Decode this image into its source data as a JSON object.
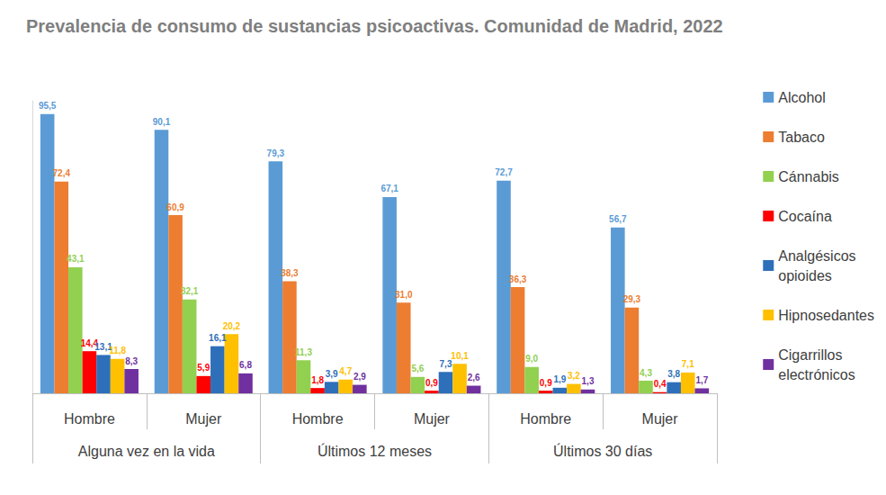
{
  "chart_data": {
    "type": "bar",
    "title": "Prevalencia de consumo de sustancias psicoactivas. Comunidad de Madrid, 2022",
    "categories": [
      "Hombre",
      "Mujer",
      "Hombre",
      "Mujer",
      "Hombre",
      "Mujer"
    ],
    "groups": [
      "Alguna vez en la vida",
      "Últimos 12 meses",
      "Últimos 30 días"
    ],
    "series": [
      {
        "name": "Alcohol",
        "color": "#5B9BD5",
        "values": [
          95.5,
          90.1,
          79.3,
          67.1,
          72.7,
          56.7
        ],
        "value_labels": [
          "95,5",
          "90,1",
          "79,3",
          "67,1",
          "72,7",
          "56,7"
        ]
      },
      {
        "name": "Tabaco",
        "color": "#ED7D31",
        "values": [
          72.4,
          60.9,
          38.3,
          31.0,
          36.3,
          29.3
        ],
        "value_labels": [
          "72,4",
          "60,9",
          "38,3",
          "31,0",
          "36,3",
          "29,3"
        ]
      },
      {
        "name": "Cánnabis",
        "color": "#92D050",
        "values": [
          43.1,
          32.1,
          11.3,
          5.6,
          9.0,
          4.3
        ],
        "value_labels": [
          "43,1",
          "32,1",
          "11,3",
          "5,6",
          "9,0",
          "4,3"
        ]
      },
      {
        "name": "Cocaína",
        "color": "#FF0000",
        "values": [
          14.4,
          5.9,
          1.8,
          0.9,
          0.9,
          0.4
        ],
        "value_labels": [
          "14,4",
          "5,9",
          "1,8",
          "0,9",
          "0,9",
          "0,4"
        ]
      },
      {
        "name": "Analgésicos opioides",
        "color": "#2E6FBA",
        "values": [
          13.1,
          16.1,
          3.9,
          7.3,
          1.9,
          3.8
        ],
        "value_labels": [
          "13,1",
          "16,1",
          "3,9",
          "7,3",
          "1,9",
          "3,8"
        ]
      },
      {
        "name": "Hipnosedantes",
        "color": "#FFC000",
        "values": [
          11.8,
          20.2,
          4.7,
          10.1,
          3.2,
          7.1
        ],
        "value_labels": [
          "11,8",
          "20,2",
          "4,7",
          "10,1",
          "3,2",
          "7,1"
        ]
      },
      {
        "name": "Cigarrillos electrónicos",
        "color": "#7030A0",
        "values": [
          8.3,
          6.8,
          2.9,
          2.6,
          1.3,
          1.7
        ],
        "value_labels": [
          "8,3",
          "6,8",
          "2,9",
          "2,6",
          "1,3",
          "1,7"
        ]
      }
    ],
    "ylim": [
      0,
      100
    ],
    "data_labels": true,
    "tick_labels": "x",
    "grid": false,
    "legend": "right"
  }
}
